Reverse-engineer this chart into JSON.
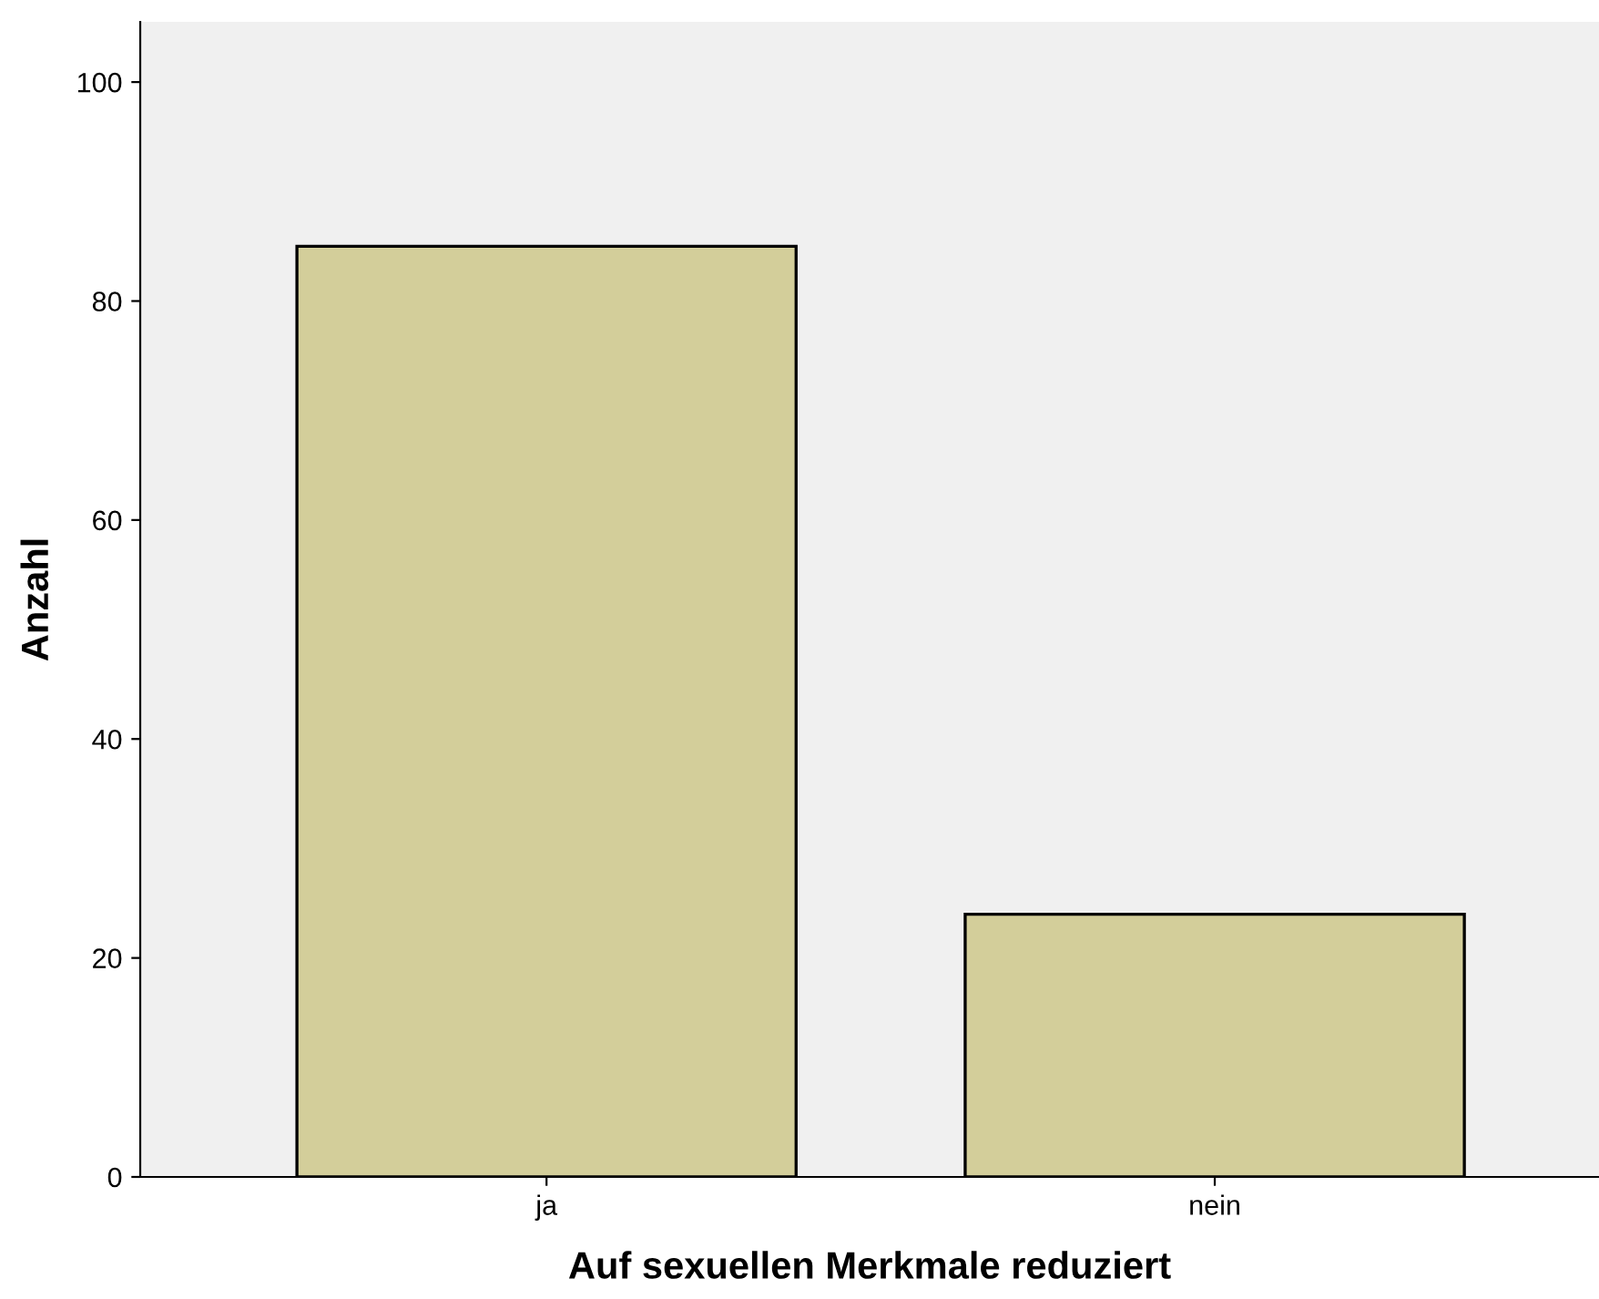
{
  "chart_data": {
    "type": "bar",
    "xlabel": "Auf sexuellen Merkmale reduziert",
    "ylabel": "Anzahl",
    "categories": [
      "ja",
      "nein"
    ],
    "values": [
      85,
      24
    ],
    "color": "#d3ce9a",
    "ylim": [
      0,
      105.5
    ],
    "yticks": [
      0,
      20,
      40,
      60,
      80,
      100
    ],
    "grid": false,
    "legend": false
  }
}
